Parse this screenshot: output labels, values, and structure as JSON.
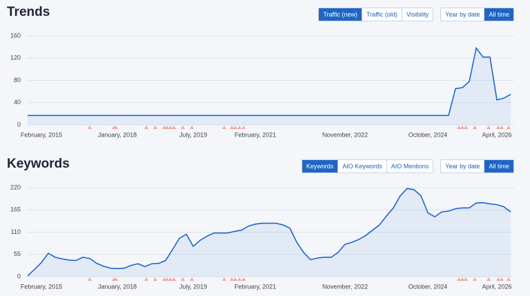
{
  "chart_data": [
    {
      "type": "area",
      "title": "Trends",
      "categories": [
        null,
        null,
        "February, 2015",
        null,
        null,
        null,
        null,
        null,
        null,
        null,
        null,
        null,
        null,
        "January, 2018",
        null,
        null,
        null,
        null,
        null,
        null,
        null,
        null,
        null,
        null,
        "July, 2019",
        null,
        null,
        null,
        null,
        null,
        null,
        null,
        null,
        "February, 2021",
        null,
        null,
        null,
        null,
        null,
        null,
        null,
        null,
        null,
        null,
        null,
        null,
        "November, 2022",
        null,
        null,
        null,
        null,
        null,
        null,
        null,
        null,
        null,
        null,
        null,
        "October, 2024",
        null,
        null,
        null,
        null,
        null,
        null,
        null,
        null,
        null,
        "April, 2026",
        null,
        null
      ],
      "values": [
        17,
        17,
        17,
        17,
        17,
        17,
        17,
        17,
        17,
        17,
        17,
        17,
        17,
        17,
        17,
        17,
        17,
        17,
        17,
        17,
        17,
        17,
        17,
        17,
        17,
        17,
        17,
        17,
        17,
        17,
        17,
        17,
        17,
        17,
        17,
        17,
        17,
        17,
        17,
        17,
        17,
        17,
        17,
        17,
        17,
        17,
        17,
        17,
        17,
        17,
        17,
        17,
        17,
        17,
        17,
        17,
        17,
        17,
        17,
        17,
        17,
        17,
        65,
        67,
        78,
        138,
        122,
        122,
        45,
        48,
        55
      ],
      "color": "#1f66cc",
      "ylim": [
        0,
        160
      ],
      "yticks": [
        0,
        40,
        80,
        120,
        160
      ],
      "grid": true
    },
    {
      "type": "area",
      "title": "Keywords",
      "categories": [
        null,
        null,
        "February, 2015",
        null,
        null,
        null,
        null,
        null,
        null,
        null,
        null,
        null,
        null,
        "January, 2018",
        null,
        null,
        null,
        null,
        null,
        null,
        null,
        null,
        null,
        null,
        "July, 2019",
        null,
        null,
        null,
        null,
        null,
        null,
        null,
        null,
        "February, 2021",
        null,
        null,
        null,
        null,
        null,
        null,
        null,
        null,
        null,
        null,
        null,
        null,
        "November, 2022",
        null,
        null,
        null,
        null,
        null,
        null,
        null,
        null,
        null,
        null,
        null,
        "October, 2024",
        null,
        null,
        null,
        null,
        null,
        null,
        null,
        null,
        null,
        "April, 2026",
        null,
        null
      ],
      "values": [
        2,
        18,
        35,
        58,
        48,
        44,
        41,
        40,
        48,
        45,
        33,
        26,
        21,
        20,
        21,
        28,
        32,
        25,
        32,
        33,
        40,
        67,
        95,
        105,
        75,
        90,
        100,
        108,
        108,
        108,
        112,
        115,
        125,
        130,
        132,
        132,
        132,
        128,
        120,
        85,
        60,
        42,
        46,
        48,
        48,
        60,
        80,
        85,
        92,
        102,
        115,
        128,
        150,
        170,
        200,
        218,
        215,
        200,
        158,
        148,
        160,
        162,
        168,
        170,
        170,
        182,
        183,
        180,
        178,
        173,
        160
      ],
      "color": "#1f66cc",
      "ylim": [
        0,
        220
      ],
      "yticks": [
        0,
        55,
        110,
        165,
        220
      ],
      "grid": true
    }
  ],
  "toolbars": [
    {
      "metrics": [
        "Traffic (new)",
        "Traffic (old)",
        "Visibility"
      ],
      "selected_metric": 0,
      "ranges": [
        "Year by date",
        "All time"
      ],
      "selected_range": 1
    },
    {
      "metrics": [
        "Keywords",
        "AIO Keywords",
        "AIO Mentions"
      ],
      "selected_metric": 0,
      "ranges": [
        "Year by date",
        "All time"
      ],
      "selected_range": 1
    }
  ]
}
